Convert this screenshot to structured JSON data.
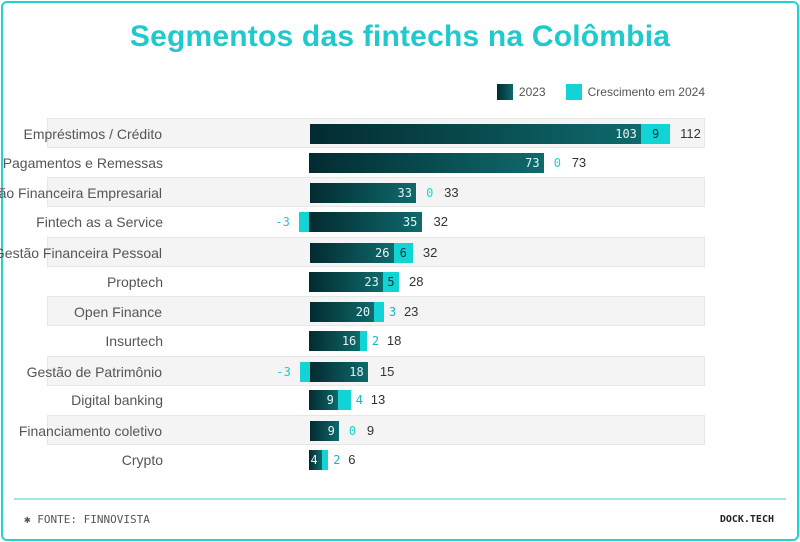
{
  "title": "Segmentos das fintechs na Colômbia",
  "footer": {
    "source": "FONTE: FINNOVISTA",
    "brand": "DOCK.TECH",
    "icon": "asterisk-icon"
  },
  "colors": {
    "base": "#0e6a6c",
    "growth": "#12d4d4",
    "title": "#1fc9cc"
  },
  "chart_data": {
    "type": "bar",
    "orientation": "horizontal-stacked",
    "title": "Segmentos das fintechs na Colômbia",
    "legend": [
      "2023",
      "Crescimento em 2024"
    ],
    "legend_position": "top-right",
    "categories": [
      "Empréstimos / Crédito",
      "Pagamentos e Remessas",
      "Gestão Financeira Empresarial",
      "Fintech as a Service",
      "Gestão Financeira Pessoal",
      "Proptech",
      "Open Finance",
      "Insurtech",
      "Gestão de Patrimônio",
      "Digital banking",
      "Financiamento coletivo",
      "Crypto"
    ],
    "series": [
      {
        "name": "2023",
        "values": [
          103,
          73,
          33,
          35,
          26,
          23,
          20,
          16,
          18,
          9,
          9,
          4
        ]
      },
      {
        "name": "Crescimento em 2024",
        "values": [
          9,
          0,
          0,
          -3,
          6,
          5,
          3,
          2,
          -3,
          4,
          0,
          2
        ]
      }
    ],
    "totals": [
      112,
      73,
      33,
      32,
      32,
      28,
      23,
      18,
      15,
      13,
      9,
      6
    ]
  }
}
